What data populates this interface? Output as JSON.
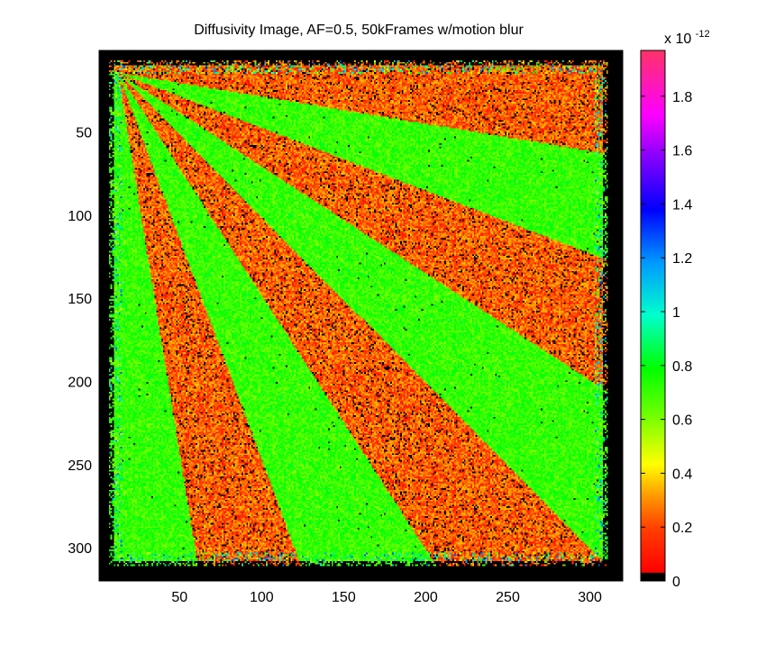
{
  "chart_data": {
    "type": "heatmap",
    "title": "Diffusivity Image, AF=0.5, 50kFrames w/motion blur",
    "xlabel": "",
    "ylabel": "",
    "xlim": [
      1,
      320
    ],
    "ylim": [
      1,
      320
    ],
    "y_direction": "top-to-bottom",
    "x_ticks": [
      50,
      100,
      150,
      200,
      250,
      300
    ],
    "y_ticks": [
      50,
      100,
      150,
      200,
      250,
      300
    ],
    "colorbar": {
      "exponent_label": "x 10",
      "exponent": "-12",
      "range": [
        0,
        1.97
      ],
      "ticks": [
        0,
        0.2,
        0.4,
        0.6,
        0.8,
        1,
        1.2,
        1.4,
        1.6,
        1.8
      ],
      "tick_labels": [
        "0",
        "0.2",
        "0.4",
        "0.6",
        "0.8",
        "1",
        "1.2",
        "1.4",
        "1.6",
        "1.8"
      ],
      "colormap": "hsv-like: black at 0, red, orange, yellow, green, cyan, blue, purple, magenta, pink at max"
    },
    "pattern": {
      "description": "Noisy fan-shaped starburst: alternating wedges radiating from the top-left corner of the square",
      "origin": [
        12,
        14
      ],
      "square_extent": {
        "x": [
          10,
          308
        ],
        "y": [
          10,
          308
        ]
      },
      "background_value": 0,
      "wedge_boundaries": [
        {
          "x": 306,
          "y": 62
        },
        {
          "x": 306,
          "y": 125
        },
        {
          "x": 306,
          "y": 203
        },
        {
          "x": 306,
          "y": 306
        },
        {
          "x": 203,
          "y": 306
        },
        {
          "x": 122,
          "y": 306
        },
        {
          "x": 60,
          "y": 306
        }
      ],
      "wedge_values": [
        0.1,
        0.55,
        0.1,
        0.55,
        0.1,
        0.55,
        0.1,
        0.55,
        0.1
      ],
      "noise_range": [
        0.0,
        0.25
      ]
    }
  }
}
